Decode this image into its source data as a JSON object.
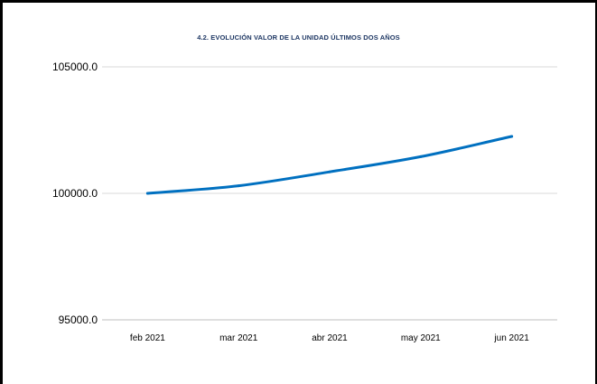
{
  "chart_data": {
    "type": "line",
    "title": "4.2. EVOLUCIÓN VALOR DE LA UNIDAD ÚLTIMOS DOS AÑOS",
    "xlabel": "",
    "ylabel": "",
    "categories": [
      "feb 2021",
      "mar 2021",
      "abr 2021",
      "may 2021",
      "jun 2021"
    ],
    "series": [
      {
        "values": [
          100000,
          100300,
          100850,
          101450,
          102250
        ]
      }
    ],
    "ylim": [
      95000,
      105000
    ],
    "yticks": [
      95000,
      100000,
      105000
    ],
    "ytick_labels": [
      "95000.0",
      "100000.0",
      "105000.0"
    ],
    "grid": true,
    "legend": "none",
    "colors": {
      "line": "#0070c0",
      "grid": "#d9d9d9",
      "axis": "#bfbfbf"
    }
  }
}
